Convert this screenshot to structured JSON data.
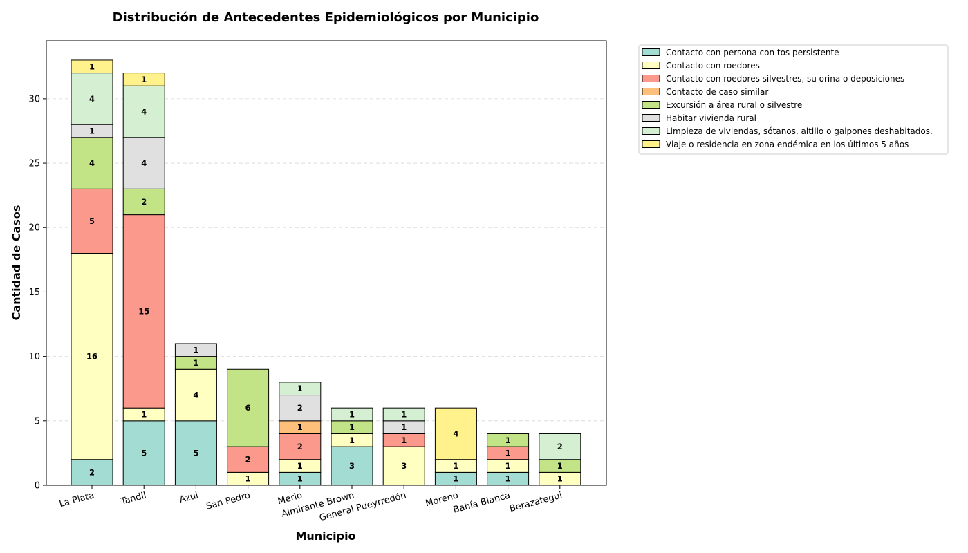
{
  "chart_data": {
    "type": "bar",
    "stacked": true,
    "title": "Distribución de Antecedentes Epidemiológicos por Municipio",
    "xlabel": "Municipio",
    "ylabel": "Cantidad de Casos",
    "ylim": [
      0,
      34.5
    ],
    "yticks": [
      0,
      5,
      10,
      15,
      20,
      25,
      30
    ],
    "grid": "horizontal",
    "legend_position": "outside-top-right",
    "categories": [
      "La Plata",
      "Tandil",
      "Azul",
      "San Pedro",
      "Merlo",
      "Almirante Brown",
      "General Pueyrredón",
      "Moreno",
      "Bahía Blanca",
      "Berazategui"
    ],
    "series": [
      {
        "name": "Contacto con persona con tos persistente",
        "color": "#a3dcd2",
        "values": [
          2,
          5,
          5,
          0,
          1,
          3,
          0,
          1,
          1,
          0
        ]
      },
      {
        "name": "Contacto con roedores",
        "color": "#ffffc2",
        "values": [
          16,
          1,
          4,
          1,
          1,
          1,
          3,
          1,
          1,
          1
        ]
      },
      {
        "name": "Contacto con roedores silvestres, su orina o deposiciones",
        "color": "#fb9a8c",
        "values": [
          5,
          15,
          0,
          2,
          2,
          0,
          1,
          0,
          1,
          0
        ]
      },
      {
        "name": "Contacto de caso similar",
        "color": "#fdbf7a",
        "values": [
          0,
          0,
          0,
          0,
          1,
          0,
          0,
          0,
          0,
          0
        ]
      },
      {
        "name": "Excursión a área rural o silvestre",
        "color": "#c3e486",
        "values": [
          4,
          2,
          1,
          6,
          0,
          1,
          0,
          0,
          1,
          1
        ]
      },
      {
        "name": "Habitar vivienda rural",
        "color": "#e0e0e0",
        "values": [
          1,
          4,
          1,
          0,
          2,
          0,
          1,
          0,
          0,
          0
        ]
      },
      {
        "name": "Limpieza de viviendas, sótanos, altillo o galpones deshabitados.",
        "color": "#d4efd1",
        "values": [
          4,
          4,
          0,
          0,
          1,
          1,
          1,
          0,
          0,
          2
        ]
      },
      {
        "name": "Viaje o residencia en zona endémica en los últimos 5 años",
        "color": "#fff18b",
        "values": [
          1,
          1,
          0,
          0,
          0,
          0,
          0,
          4,
          0,
          0
        ]
      }
    ]
  }
}
